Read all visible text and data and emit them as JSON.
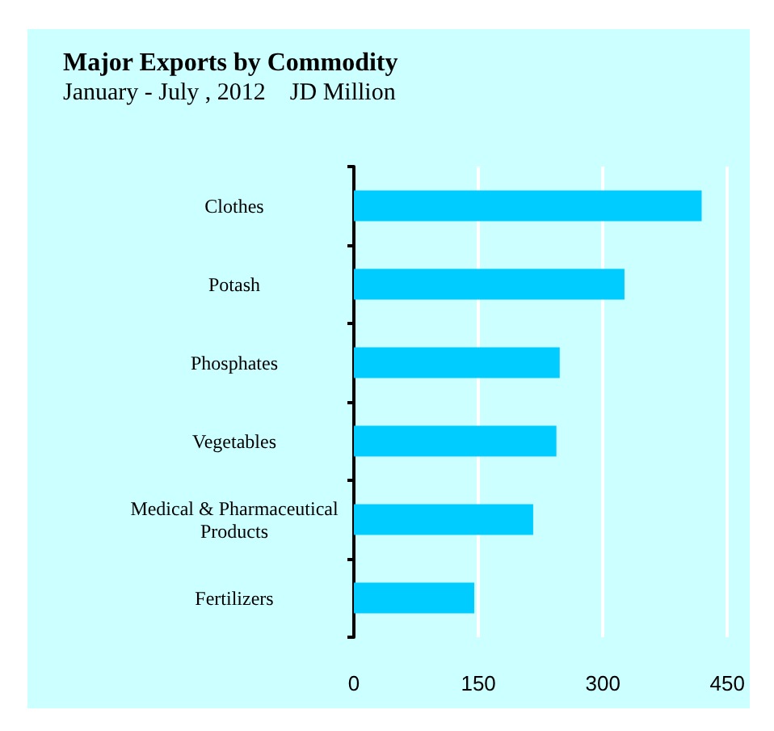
{
  "chart_data": {
    "type": "bar",
    "orientation": "horizontal",
    "title": "Major Exports by Commodity",
    "subtitle": "January - July , 2012    JD Million",
    "categories": [
      "Clothes",
      "Potash",
      "Phosphates",
      "Vegetables",
      "Medical & Pharmaceutical\nProducts",
      "Fertilizers"
    ],
    "values": [
      419,
      326,
      248,
      244,
      216,
      145
    ],
    "color": "#00ccff",
    "xlim": [
      0,
      450
    ],
    "xticks": [
      0,
      150,
      300,
      450
    ],
    "grid": "x"
  }
}
